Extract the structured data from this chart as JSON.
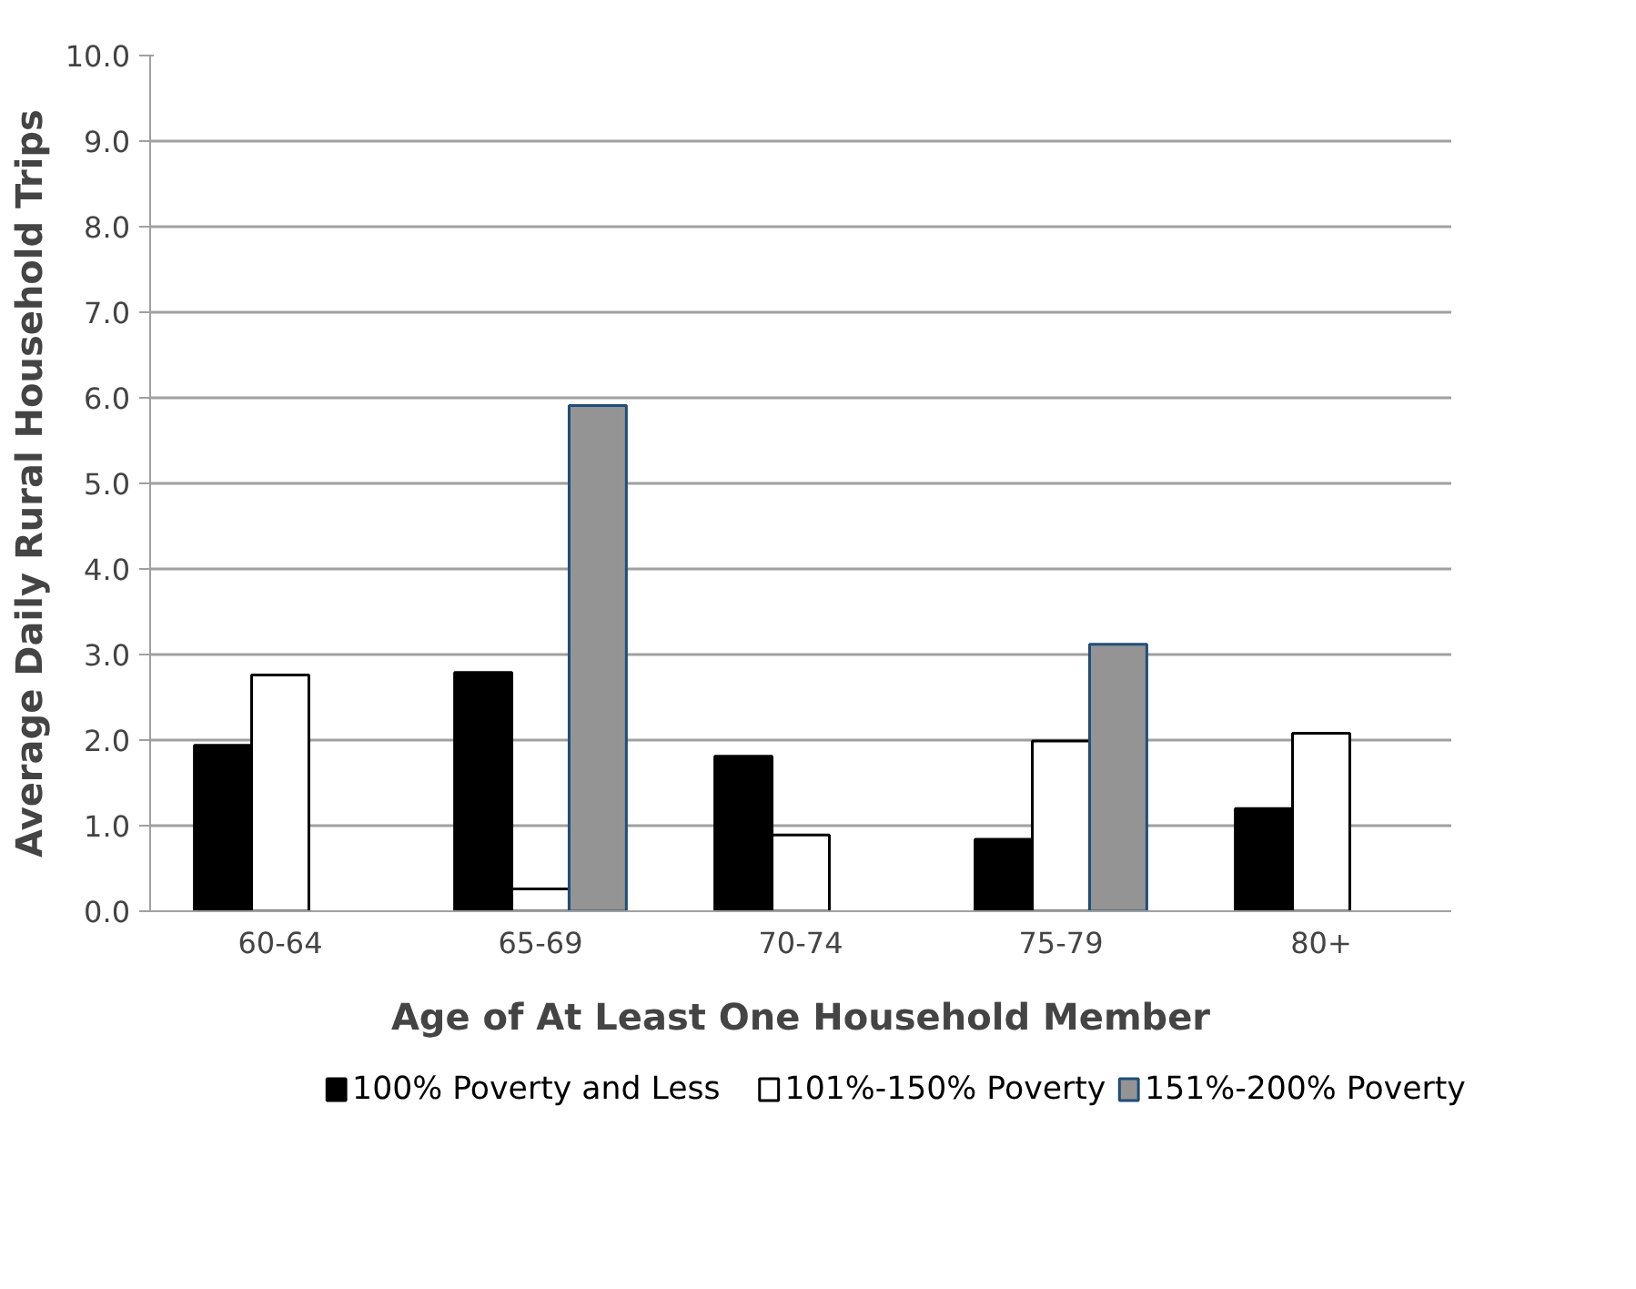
{
  "chart_data": {
    "type": "bar",
    "xlabel": "Age of At Least One Household Member",
    "ylabel": "Average Daily Rural Household Trips",
    "categories": [
      "60-64",
      "65-69",
      "70-74",
      "75-79",
      "80+"
    ],
    "series": [
      {
        "name": "100% Poverty and Less",
        "color": "#000000",
        "values": [
          1.94,
          2.79,
          1.81,
          0.84,
          1.2
        ]
      },
      {
        "name": "101%-150% Poverty",
        "color": "#ffffff",
        "values": [
          2.76,
          0.26,
          0.89,
          1.99,
          2.08
        ]
      },
      {
        "name": "151%-200% Poverty",
        "color": "#949494",
        "values": [
          null,
          5.91,
          null,
          3.12,
          null
        ]
      }
    ],
    "ylim": [
      0,
      10
    ],
    "yticks": [
      {
        "value": 0,
        "label": "0.0"
      },
      {
        "value": 1,
        "label": "1.0"
      },
      {
        "value": 2,
        "label": "2.0"
      },
      {
        "value": 3,
        "label": "3.0"
      },
      {
        "value": 4,
        "label": "4.0"
      },
      {
        "value": 5,
        "label": "5.0"
      },
      {
        "value": 6,
        "label": "6.0"
      },
      {
        "value": 7,
        "label": "7.0"
      },
      {
        "value": 8,
        "label": "8.0"
      },
      {
        "value": 9,
        "label": "9.0"
      },
      {
        "value": 10,
        "label": "10.0"
      }
    ],
    "grid": "y",
    "legend": "bottom"
  }
}
